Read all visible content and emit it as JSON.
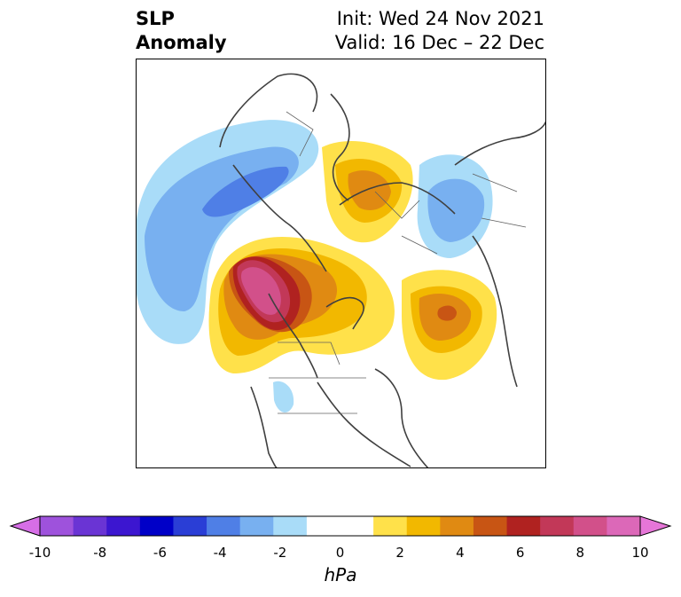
{
  "title": {
    "left_line1": "SLP",
    "left_line2": "Anomaly",
    "right_line1": "Init: Wed 24 Nov 2021",
    "right_line2": "Valid: 16 Dec – 22 Dec"
  },
  "colorbar": {
    "unit": "hPa",
    "ticks": [
      "-10",
      "-8",
      "-6",
      "-4",
      "-2",
      "0",
      "2",
      "4",
      "6",
      "8",
      "10"
    ],
    "colors": [
      "#d66ee6",
      "#9e52dc",
      "#6a34d4",
      "#3c16d0",
      "#0000c8",
      "#2a3ed6",
      "#4f7fe6",
      "#78b0f0",
      "#a9dcf8",
      "#ffffff",
      "#ffffff",
      "#ffe14a",
      "#f2b800",
      "#e08a12",
      "#c85514",
      "#b02220",
      "#c23858",
      "#d2508a",
      "#dc68b8",
      "#e676d8"
    ]
  },
  "map": {
    "projection": "north polar stereographic",
    "features": [
      "coastlines",
      "country borders",
      "state/province borders"
    ]
  }
}
